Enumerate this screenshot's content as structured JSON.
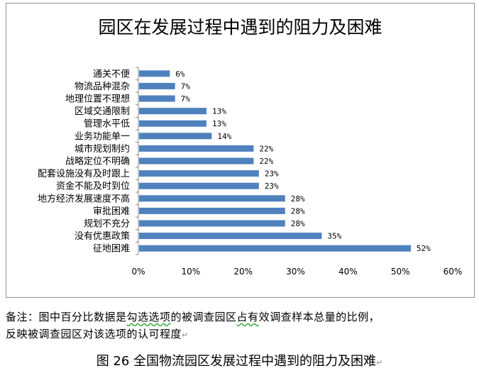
{
  "chart_data": {
    "type": "bar",
    "orientation": "horizontal",
    "title": "园区在发展过程中遇到的阻力及困难",
    "categories": [
      "通关不便",
      "物流品种混杂",
      "地理位置不理想",
      "区域交通限制",
      "管理水平低",
      "业务功能单一",
      "城市规划制约",
      "战略定位不明确",
      "配套设施没有及时跟上",
      "资金不能及时到位",
      "地方经济发展速度不高",
      "审批困难",
      "规划不充分",
      "没有优惠政策",
      "征地困难"
    ],
    "values": [
      6,
      7,
      7,
      13,
      13,
      14,
      22,
      22,
      23,
      23,
      28,
      28,
      28,
      35,
      52
    ],
    "value_labels": [
      "6%",
      "7%",
      "7%",
      "13%",
      "13%",
      "14%",
      "22%",
      "22%",
      "23%",
      "23%",
      "28%",
      "28%",
      "28%",
      "35%",
      "52%"
    ],
    "xlim": [
      0,
      60
    ],
    "x_ticks": [
      "0%",
      "10%",
      "20%",
      "30%",
      "40%",
      "50%",
      "60%"
    ],
    "bar_color": "#4f81bd",
    "grid": false,
    "legend": "none"
  },
  "note": {
    "line1_a": "备注：图中百分比数据是",
    "line1_b": "勾选选项",
    "line1_c": "的被调查园区",
    "line1_d": "占有",
    "line1_e": "效调查样本总量的比例，",
    "line2": "反映被调查园区对该选项的认可程度"
  },
  "caption": "图 26  全国物流园区发展过程中遇到的阻力及困难"
}
